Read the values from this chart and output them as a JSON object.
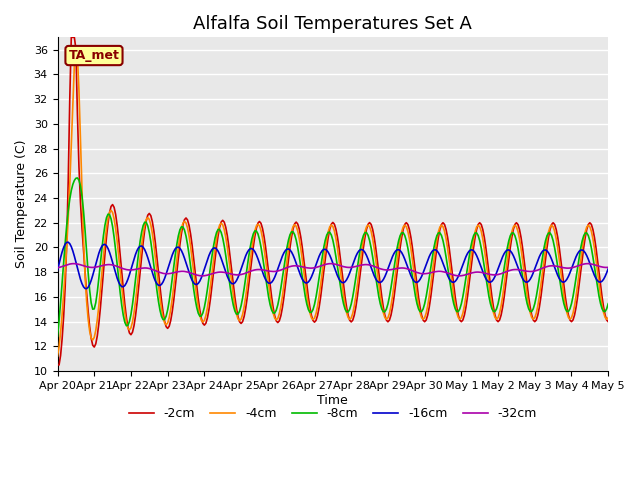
{
  "title": "Alfalfa Soil Temperatures Set A",
  "ylabel": "Soil Temperature (C)",
  "xlabel": "Time",
  "ylim": [
    10,
    37
  ],
  "xlim": [
    0,
    15
  ],
  "background_color": "#ffffff",
  "plot_bg_color": "#e8e8e8",
  "grid_color": "#ffffff",
  "annotation_text": "TA_met",
  "annotation_bg": "#ffff99",
  "annotation_border": "#880000",
  "tick_labels": [
    "Apr 20",
    "Apr 21",
    "Apr 22",
    "Apr 23",
    "Apr 24",
    "Apr 25",
    "Apr 26",
    "Apr 27",
    "Apr 28",
    "Apr 29",
    "Apr 30",
    "May 1",
    "May 2",
    "May 3",
    "May 4",
    "May 5"
  ],
  "series": {
    "-2cm": {
      "color": "#cc0000",
      "lw": 1.2
    },
    "-4cm": {
      "color": "#ff8800",
      "lw": 1.2
    },
    "-8cm": {
      "color": "#00bb00",
      "lw": 1.2
    },
    "-16cm": {
      "color": "#0000cc",
      "lw": 1.2
    },
    "-32cm": {
      "color": "#aa00aa",
      "lw": 1.2
    }
  },
  "legend_fontsize": 9,
  "title_fontsize": 13,
  "axis_fontsize": 8
}
